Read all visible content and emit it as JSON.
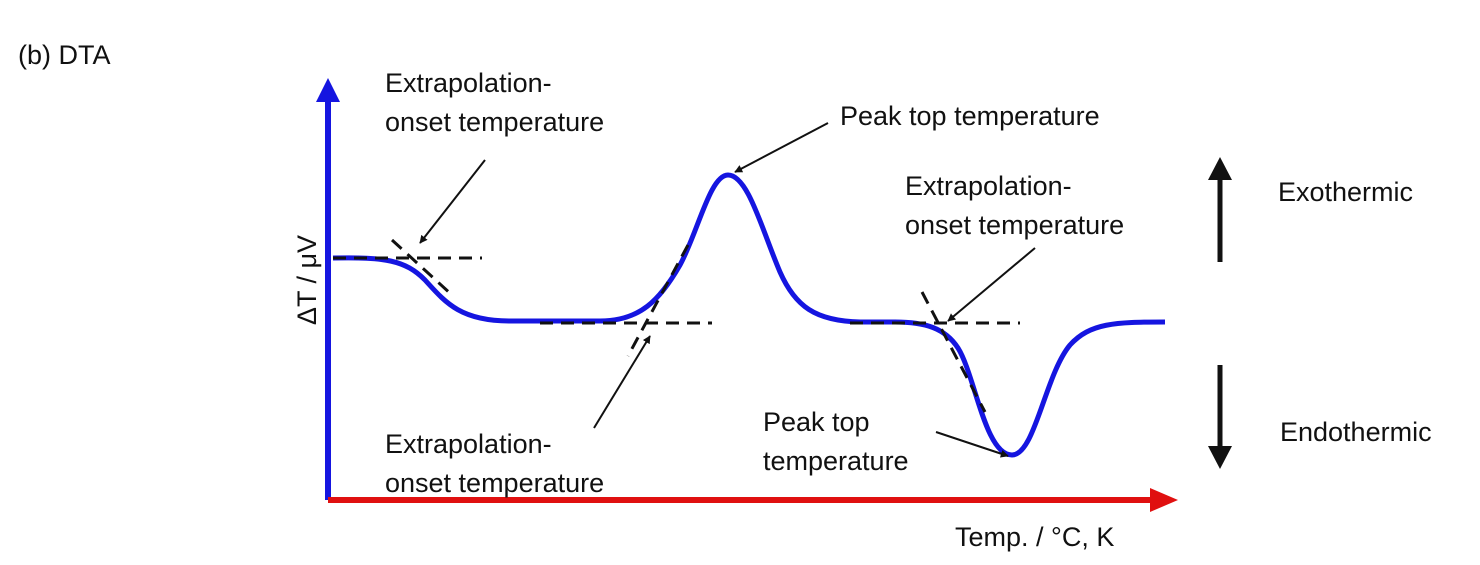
{
  "panel_label": "(b) DTA",
  "axes": {
    "y_label": "ΔT / μV",
    "x_label": "Temp. / °C, K",
    "y_color": "#1515e0",
    "x_color": "#e01010"
  },
  "curve_color": "#1515e0",
  "annotations": {
    "onset_1": [
      "Extrapolation-",
      "onset temperature"
    ],
    "peak_exo": [
      "Peak top temperature"
    ],
    "onset_2": [
      "Extrapolation-",
      "onset temperature"
    ],
    "onset_3": [
      "Extrapolation-",
      "onset temperature"
    ],
    "peak_endo": [
      "Peak top",
      "temperature"
    ]
  },
  "direction": {
    "up": "Exothermic",
    "down": "Endothermic"
  }
}
